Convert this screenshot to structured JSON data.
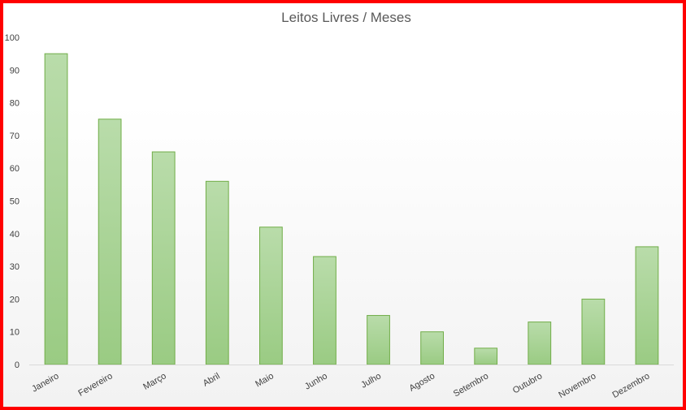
{
  "chart_data": {
    "type": "bar",
    "title": "Leitos Livres / Meses",
    "categories": [
      "Janeiro",
      "Fevereiro",
      "Março",
      "Abril",
      "Maio",
      "Junho",
      "Julho",
      "Agosto",
      "Setembro",
      "Outubro",
      "Novembro",
      "Dezembro"
    ],
    "values": [
      95,
      75,
      65,
      56,
      42,
      33,
      15,
      10,
      5,
      13,
      20,
      36
    ],
    "ylim": [
      0,
      100
    ],
    "yticks": [
      0,
      10,
      20,
      30,
      40,
      50,
      60,
      70,
      80,
      90,
      100
    ],
    "xlabel": "",
    "ylabel": "",
    "grid": false,
    "legend": "none",
    "colors": {
      "bar_top": "#b9dcaa",
      "bar_bottom": "#9acb83",
      "bar_stroke": "#70ad47",
      "frame_border": "#ff0000",
      "axis": "#d9d9d9"
    }
  }
}
